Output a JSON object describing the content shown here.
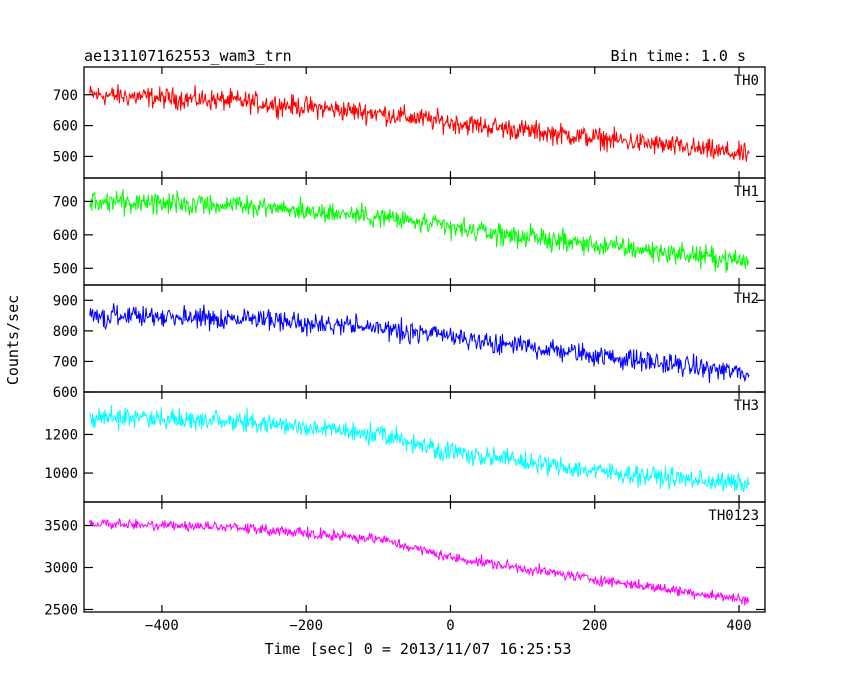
{
  "header": {
    "title": "ae131107162553_wam3_trn",
    "bin_time": "Bin time: 1.0 s"
  },
  "chart_data": {
    "type": "line",
    "title": "ae131107162553_wam3_trn",
    "xlabel": "Time [sec] 0 = 2013/11/07 16:25:53",
    "ylabel": "Counts/sec",
    "xlim": [
      -508,
      436
    ],
    "x_ticks": [
      -400,
      -200,
      0,
      200,
      400
    ],
    "x_tick_labels": [
      "−400",
      "−200",
      "0",
      "200",
      "400"
    ],
    "x_range": [
      -500,
      414
    ],
    "grid": false,
    "legend": "none",
    "panels": [
      {
        "name": "TH0",
        "color": "#ff0000",
        "ylim": [
          430,
          790
        ],
        "yticks": [
          500,
          600,
          700
        ],
        "trend": [
          [
            -500,
            700
          ],
          [
            -300,
            680
          ],
          [
            -100,
            640
          ],
          [
            0,
            610
          ],
          [
            200,
            560
          ],
          [
            414,
            505
          ]
        ],
        "noise": 30
      },
      {
        "name": "TH1",
        "color": "#00ff00",
        "ylim": [
          450,
          770
        ],
        "yticks": [
          500,
          600,
          700
        ],
        "trend": [
          [
            -500,
            700
          ],
          [
            -300,
            690
          ],
          [
            -100,
            655
          ],
          [
            0,
            620
          ],
          [
            200,
            570
          ],
          [
            414,
            520
          ]
        ],
        "noise": 28
      },
      {
        "name": "TH2",
        "color": "#0000ff",
        "ylim": [
          600,
          950
        ],
        "yticks": [
          600,
          700,
          800,
          900
        ],
        "trend": [
          [
            -500,
            850
          ],
          [
            -300,
            840
          ],
          [
            -100,
            810
          ],
          [
            0,
            780
          ],
          [
            200,
            720
          ],
          [
            414,
            660
          ]
        ],
        "noise": 30
      },
      {
        "name": "TH3",
        "color": "#00ffff",
        "ylim": [
          850,
          1420
        ],
        "yticks": [
          1000,
          1200
        ],
        "trend": [
          [
            -500,
            1290
          ],
          [
            -300,
            1270
          ],
          [
            -100,
            1200
          ],
          [
            0,
            1110
          ],
          [
            200,
            1010
          ],
          [
            414,
            940
          ]
        ],
        "noise": 45
      },
      {
        "name": "TH0123",
        "color": "#ff00ff",
        "ylim": [
          2470,
          3780
        ],
        "yticks": [
          2500,
          3000,
          3500
        ],
        "trend": [
          [
            -500,
            3520
          ],
          [
            -300,
            3480
          ],
          [
            -100,
            3340
          ],
          [
            0,
            3120
          ],
          [
            200,
            2860
          ],
          [
            414,
            2610
          ]
        ],
        "noise": 55
      }
    ]
  }
}
